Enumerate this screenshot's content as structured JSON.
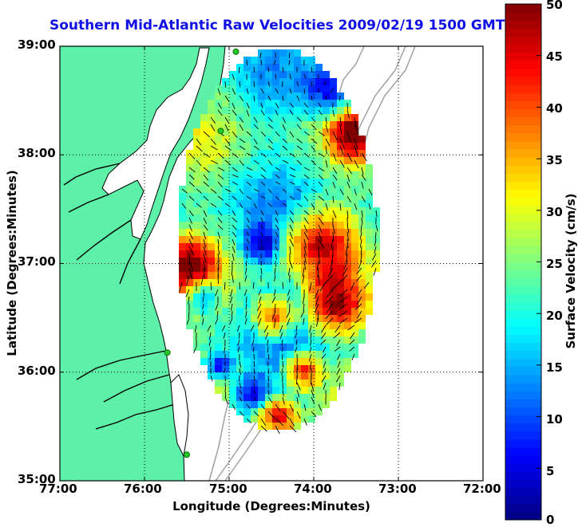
{
  "title": "Southern Mid-Atlantic Raw Velocities 2009/02/19 1500 GMT",
  "x_axis": {
    "label": "Longitude (Degrees:Minutes)",
    "ticks": [
      "77:00",
      "76:00",
      "75:00",
      "74:00",
      "73:00",
      "72:00"
    ]
  },
  "y_axis": {
    "label": "Latitude (Degrees:Minutes)",
    "ticks": [
      "39:00",
      "38:00",
      "37:00",
      "36:00",
      "35:00"
    ]
  },
  "colorbar": {
    "label": "Surface Velocity (cm/s)",
    "ticks": [
      "50",
      "45",
      "40",
      "35",
      "30",
      "25",
      "20",
      "15",
      "10",
      "5",
      "0"
    ],
    "min": 0,
    "max": 50
  },
  "chart_data": {
    "type": "heatmap",
    "title": "Southern Mid-Atlantic Raw Velocities 2009/02/19 1500 GMT",
    "xlabel": "Longitude (Degrees:Minutes)",
    "ylabel": "Latitude (Degrees:Minutes)",
    "xlim": [
      -77,
      -72
    ],
    "ylim": [
      35,
      39
    ],
    "grid": true,
    "colorbar_label": "Surface Velocity (cm/s)",
    "colorbar_range": [
      0,
      50
    ],
    "colors": {
      "land": "#5cf0a8",
      "coast": "#000000",
      "grid": "#000000",
      "bathymetry": "#a0a0a0",
      "station": "#22cc22"
    },
    "stations": [
      {
        "lon": -74.92,
        "lat": 38.95
      },
      {
        "lon": -75.1,
        "lat": 38.22
      },
      {
        "lon": -75.73,
        "lat": 36.18
      },
      {
        "lon": -75.5,
        "lat": 35.24
      }
    ]
  }
}
